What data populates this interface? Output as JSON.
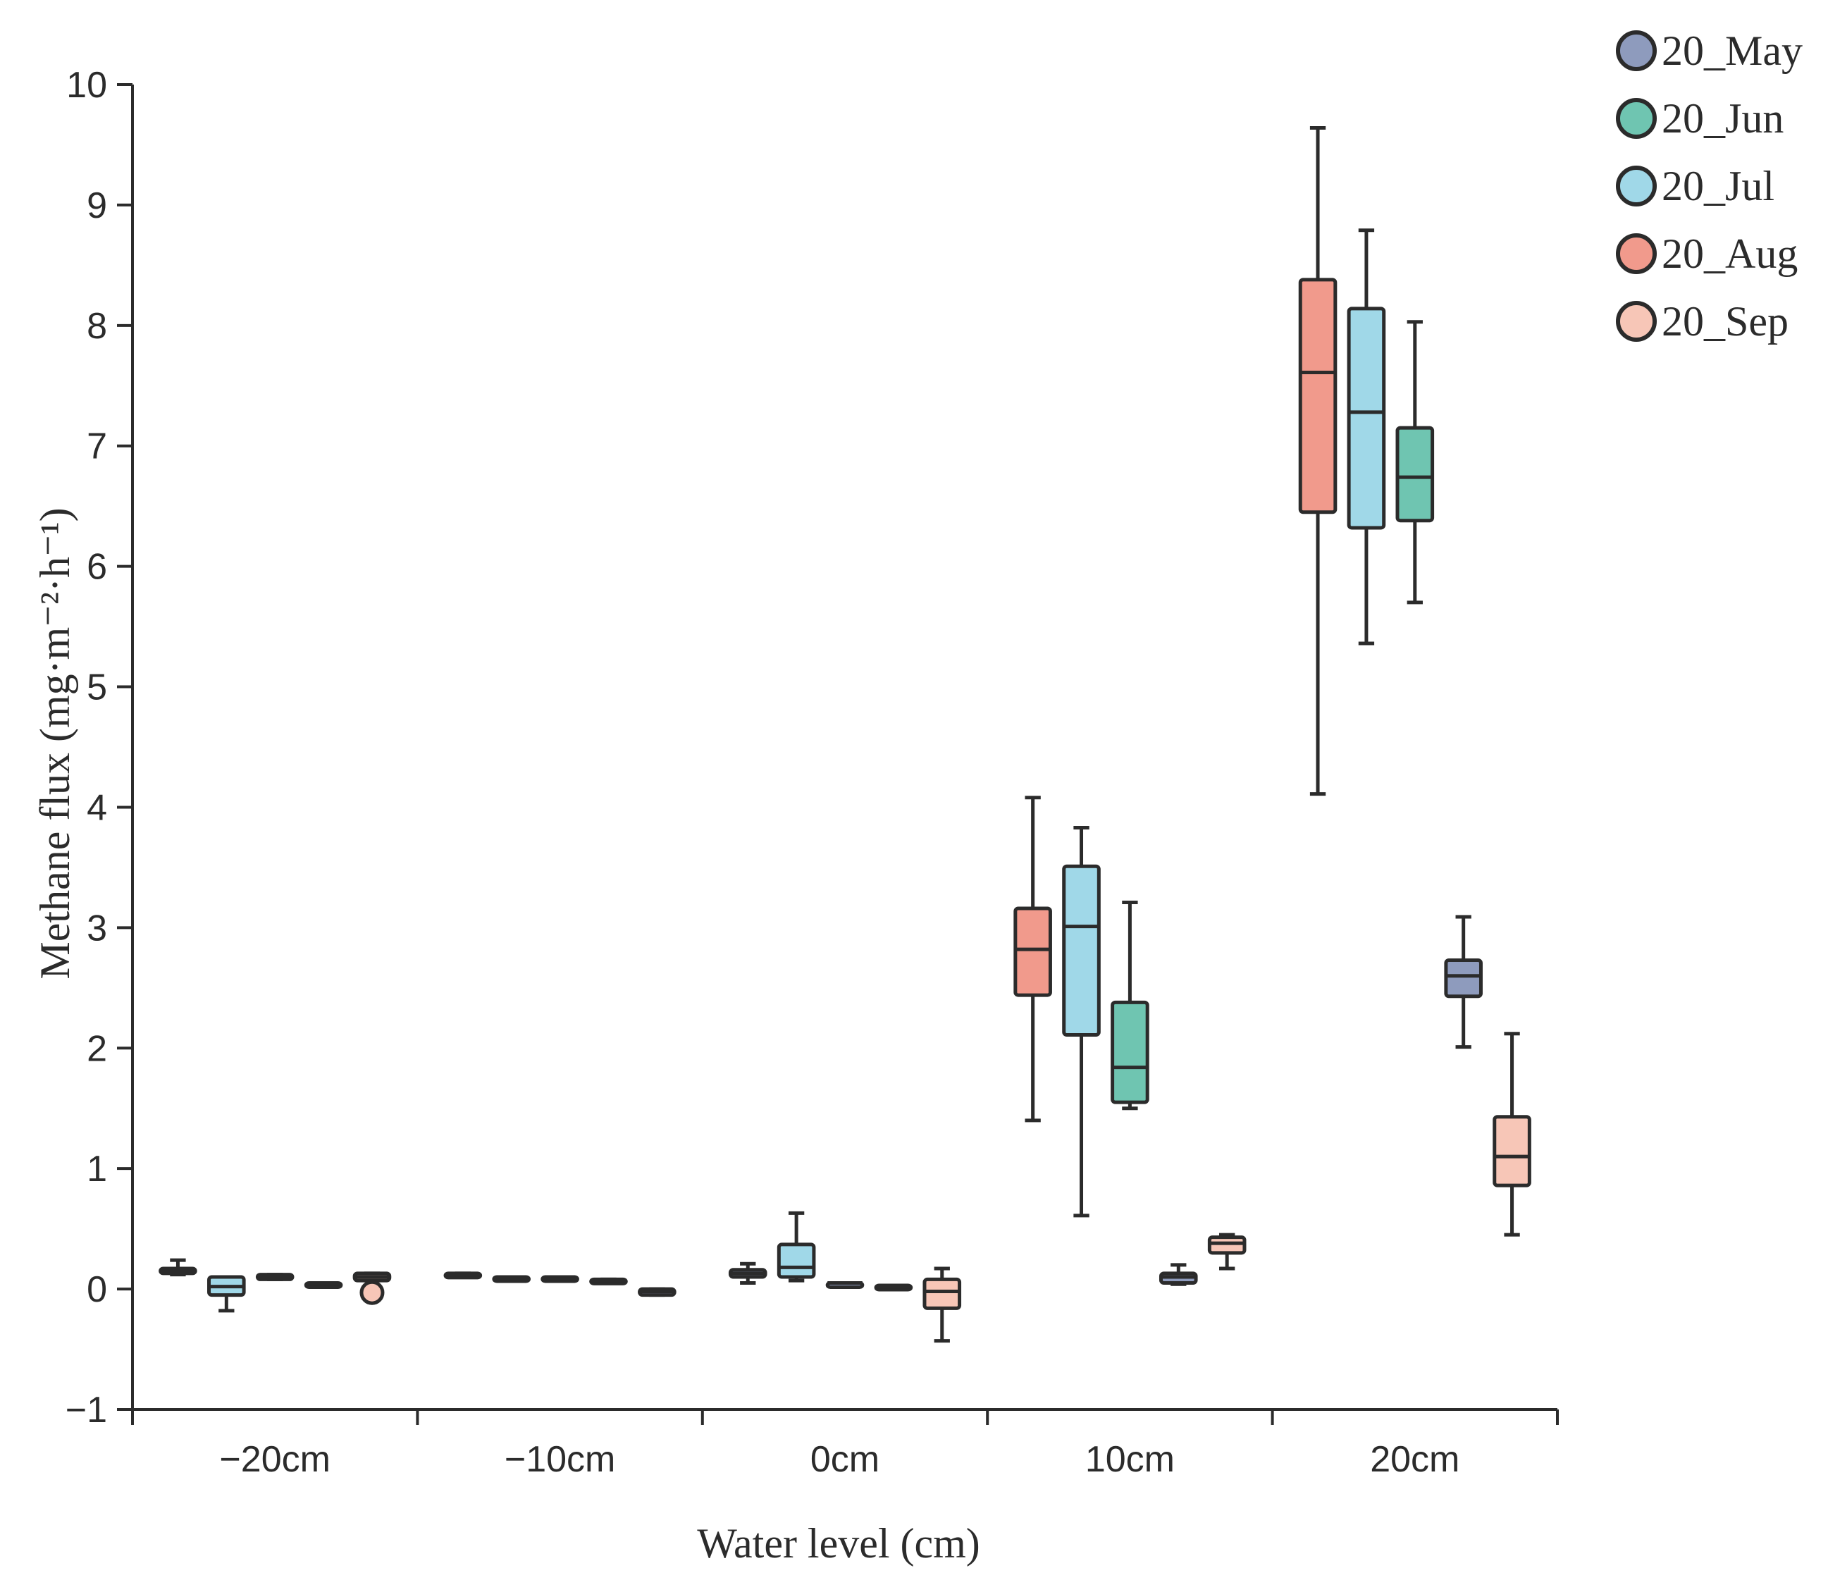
{
  "chart_data": {
    "type": "box",
    "xlabel": "Water level (cm)",
    "ylabel": "Methane flux (mg·m⁻²·h⁻¹)",
    "ylim": [
      -1,
      10
    ],
    "yticks": [
      "−1",
      "0",
      "1",
      "2",
      "3",
      "4",
      "5",
      "6",
      "7",
      "8",
      "9",
      "10"
    ],
    "categories": [
      "−20cm",
      "−10cm",
      "0cm",
      "10cm",
      "20cm"
    ],
    "legend": {
      "position": "top-right",
      "entries": [
        {
          "name": "20_May",
          "color": "#8e9bbd"
        },
        {
          "name": "20_Jun",
          "color": "#6fc5b1"
        },
        {
          "name": "20_Jul",
          "color": "#a0d8e8"
        },
        {
          "name": "20_Aug",
          "color": "#f19a8c"
        },
        {
          "name": "20_Sep",
          "color": "#f7c6b7"
        }
      ]
    },
    "boxes": [
      {
        "category": "−20cm",
        "series": "20_May",
        "min": 0.12,
        "q1": 0.13,
        "median": 0.15,
        "q3": 0.17,
        "max": 0.24
      },
      {
        "category": "−20cm",
        "series": "20_Jul",
        "min": -0.18,
        "q1": -0.05,
        "median": 0.02,
        "q3": 0.1,
        "max": 0.1
      },
      {
        "category": "−20cm",
        "series": "20_May",
        "min": 0.08,
        "q1": 0.08,
        "median": 0.1,
        "q3": 0.12,
        "max": 0.12
      },
      {
        "category": "−20cm",
        "series": "20_May",
        "min": 0.03,
        "q1": 0.03,
        "median": 0.04,
        "q3": 0.05,
        "max": 0.05
      },
      {
        "category": "−20cm",
        "series": "20_Sep",
        "min": 0.07,
        "q1": 0.07,
        "median": 0.1,
        "q3": 0.13,
        "max": 0.13,
        "outliers": [
          -0.03
        ]
      },
      {
        "category": "−10cm",
        "series": "20_May",
        "min": 0.11,
        "q1": 0.11,
        "median": 0.12,
        "q3": 0.13,
        "max": 0.13
      },
      {
        "category": "−10cm",
        "series": "20_May",
        "min": 0.09,
        "q1": 0.09,
        "median": 0.09,
        "q3": 0.1,
        "max": 0.1
      },
      {
        "category": "−10cm",
        "series": "20_May",
        "min": 0.07,
        "q1": 0.07,
        "median": 0.08,
        "q3": 0.1,
        "max": 0.1
      },
      {
        "category": "−10cm",
        "series": "20_May",
        "min": 0.07,
        "q1": 0.07,
        "median": 0.07,
        "q3": 0.08,
        "max": 0.08
      },
      {
        "category": "−10cm",
        "series": "20_May",
        "min": -0.05,
        "q1": -0.05,
        "median": -0.02,
        "q3": 0.0,
        "max": 0.0
      },
      {
        "category": "0cm",
        "series": "20_May",
        "min": 0.05,
        "q1": 0.1,
        "median": 0.13,
        "q3": 0.16,
        "max": 0.21
      },
      {
        "category": "0cm",
        "series": "20_Jul",
        "min": 0.07,
        "q1": 0.1,
        "median": 0.18,
        "q3": 0.37,
        "max": 0.63
      },
      {
        "category": "0cm",
        "series": "20_May",
        "min": 0.04,
        "q1": 0.04,
        "median": 0.05,
        "q3": 0.05,
        "max": 0.05
      },
      {
        "category": "0cm",
        "series": "20_May",
        "min": 0.02,
        "q1": 0.02,
        "median": 0.02,
        "q3": 0.03,
        "max": 0.03
      },
      {
        "category": "0cm",
        "series": "20_Sep",
        "min": -0.43,
        "q1": -0.16,
        "median": -0.02,
        "q3": 0.08,
        "max": 0.17
      },
      {
        "category": "10cm",
        "series": "20_Aug",
        "min": 1.4,
        "q1": 2.44,
        "median": 2.82,
        "q3": 3.16,
        "max": 4.08
      },
      {
        "category": "10cm",
        "series": "20_Jul",
        "min": 0.61,
        "q1": 2.11,
        "median": 3.01,
        "q3": 3.51,
        "max": 3.83
      },
      {
        "category": "10cm",
        "series": "20_Jun",
        "min": 1.5,
        "q1": 1.55,
        "median": 1.84,
        "q3": 2.38,
        "max": 3.21
      },
      {
        "category": "10cm",
        "series": "20_May",
        "min": 0.04,
        "q1": 0.05,
        "median": 0.1,
        "q3": 0.13,
        "max": 0.2
      },
      {
        "category": "10cm",
        "series": "20_Sep",
        "min": 0.17,
        "q1": 0.3,
        "median": 0.38,
        "q3": 0.43,
        "max": 0.45
      },
      {
        "category": "20cm",
        "series": "20_Aug",
        "min": 4.11,
        "q1": 6.45,
        "median": 7.61,
        "q3": 8.38,
        "max": 9.64
      },
      {
        "category": "20cm",
        "series": "20_Jul",
        "min": 5.36,
        "q1": 6.32,
        "median": 7.28,
        "q3": 8.14,
        "max": 8.79
      },
      {
        "category": "20cm",
        "series": "20_Jun",
        "min": 5.7,
        "q1": 6.38,
        "median": 6.74,
        "q3": 7.15,
        "max": 8.03
      },
      {
        "category": "20cm",
        "series": "20_May",
        "min": 2.01,
        "q1": 2.43,
        "median": 2.6,
        "q3": 2.73,
        "max": 3.09
      },
      {
        "category": "20cm",
        "series": "20_Sep",
        "min": 0.45,
        "q1": 0.86,
        "median": 1.1,
        "q3": 1.43,
        "max": 2.12
      }
    ]
  }
}
